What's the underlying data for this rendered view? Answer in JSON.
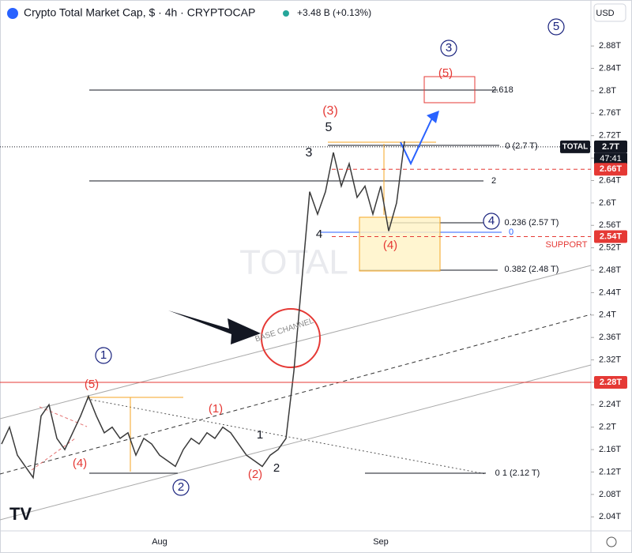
{
  "chart_data": {
    "type": "line",
    "title": "Crypto Total Market Cap, $ · 4h · CRYPTOCAP",
    "subtitle": "+3.48 B (+0.13%)",
    "currency": "USD",
    "watermark": "TOTAL",
    "symbol": "TOTAL",
    "countdown": "47:41",
    "categories": [
      null,
      null,
      null,
      null,
      null,
      null,
      null,
      null,
      null,
      null,
      null,
      null,
      null,
      null,
      null,
      null,
      null,
      null,
      null,
      null,
      "Aug",
      null,
      null,
      null,
      null,
      null,
      null,
      null,
      null,
      null,
      null,
      null,
      null,
      null,
      null,
      null,
      null,
      null,
      null,
      null,
      null,
      null,
      null,
      null,
      null,
      null,
      null,
      null,
      "Sep",
      null,
      null,
      null
    ],
    "series": [
      {
        "name": "TOTAL",
        "color": "#3a3a3a",
        "values": [
          2.17,
          2.2,
          2.15,
          2.13,
          2.11,
          2.22,
          2.24,
          2.18,
          2.16,
          2.19,
          2.22,
          2.255,
          2.22,
          2.19,
          2.2,
          2.18,
          2.19,
          2.15,
          2.18,
          2.17,
          2.15,
          2.14,
          2.13,
          2.16,
          2.18,
          2.17,
          2.19,
          2.18,
          2.2,
          2.19,
          2.17,
          2.15,
          2.14,
          2.13,
          2.15,
          2.16,
          2.18,
          2.3,
          2.46,
          2.62,
          2.58,
          2.62,
          2.69,
          2.63,
          2.67,
          2.61,
          2.63,
          2.58,
          2.63,
          2.55,
          2.6,
          2.71
        ]
      }
    ],
    "ylim": [
      2.015,
      2.962
    ],
    "yticks": [
      {
        "value": 2.04,
        "label": "2.04T"
      },
      {
        "value": 2.08,
        "label": "2.08T"
      },
      {
        "value": 2.12,
        "label": "2.12T"
      },
      {
        "value": 2.16,
        "label": "2.16T"
      },
      {
        "value": 2.2,
        "label": "2.2T"
      },
      {
        "value": 2.24,
        "label": "2.24T"
      },
      {
        "value": 2.28,
        "label": "2.28T"
      },
      {
        "value": 2.32,
        "label": "2.32T"
      },
      {
        "value": 2.36,
        "label": "2.36T"
      },
      {
        "value": 2.4,
        "label": "2.4T"
      },
      {
        "value": 2.44,
        "label": "2.44T"
      },
      {
        "value": 2.48,
        "label": "2.48T"
      },
      {
        "value": 2.52,
        "label": "2.52T"
      },
      {
        "value": 2.56,
        "label": "2.56T"
      },
      {
        "value": 2.6,
        "label": "2.6T"
      },
      {
        "value": 2.64,
        "label": "2.64T"
      },
      {
        "value": 2.68,
        "label": "2.68T"
      },
      {
        "value": 2.72,
        "label": "2.72T"
      },
      {
        "value": 2.76,
        "label": "2.76T"
      },
      {
        "value": 2.8,
        "label": "2.8T"
      },
      {
        "value": 2.84,
        "label": "2.84T"
      },
      {
        "value": 2.88,
        "label": "2.88T"
      }
    ],
    "levels": [
      {
        "value": 2.7,
        "label": "2.7T",
        "color": "#131722",
        "style": "dotted"
      },
      {
        "value": 2.66,
        "label": "2.66T",
        "color": "#e53935",
        "style": "dashed"
      },
      {
        "value": 2.54,
        "label": "2.54T",
        "color": "#e53935",
        "style": "dashed"
      },
      {
        "value": 2.28,
        "label": "2.28T",
        "color": "#e53935",
        "style": "solid"
      }
    ],
    "annotations": [
      {
        "text": "(5)",
        "color": "#e53935"
      },
      {
        "text": "(4)",
        "color": "#e53935"
      },
      {
        "text": "(1)",
        "color": "#e53935"
      },
      {
        "text": "(2)",
        "color": "#e53935"
      },
      {
        "text": "1",
        "color": "#131722"
      },
      {
        "text": "2",
        "color": "#131722"
      },
      {
        "text": "(3)",
        "color": "#e53935"
      },
      {
        "text": "5",
        "color": "#131722"
      },
      {
        "text": "3",
        "color": "#131722"
      },
      {
        "text": "4",
        "color": "#131722"
      },
      {
        "text": "(4)",
        "color": "#e53935"
      },
      {
        "text": "(5)",
        "color": "#e53935"
      },
      {
        "text": "1",
        "color": "#1a237e",
        "circled": true
      },
      {
        "text": "2",
        "color": "#1a237e",
        "circled": true
      },
      {
        "text": "3",
        "color": "#1a237e",
        "circled": true
      },
      {
        "text": "4",
        "color": "#1a237e",
        "circled": true
      },
      {
        "text": "5",
        "color": "#1a237e",
        "circled": true
      },
      {
        "text": "2.618",
        "color": "#131722"
      },
      {
        "text": "2",
        "color": "#131722"
      },
      {
        "text": "0 (2.7 T)",
        "color": "#131722"
      },
      {
        "text": "0.236 (2.57 T)",
        "color": "#131722"
      },
      {
        "text": "0",
        "color": "#2962ff"
      },
      {
        "text": "0.382 (2.48 T)",
        "color": "#131722"
      },
      {
        "text": "0  1 (2.12 T)",
        "color": "#131722"
      },
      {
        "text": "SUPPORT",
        "color": "#e53935"
      },
      {
        "text": "BASE CHANNEL",
        "color": "#888888"
      }
    ]
  }
}
